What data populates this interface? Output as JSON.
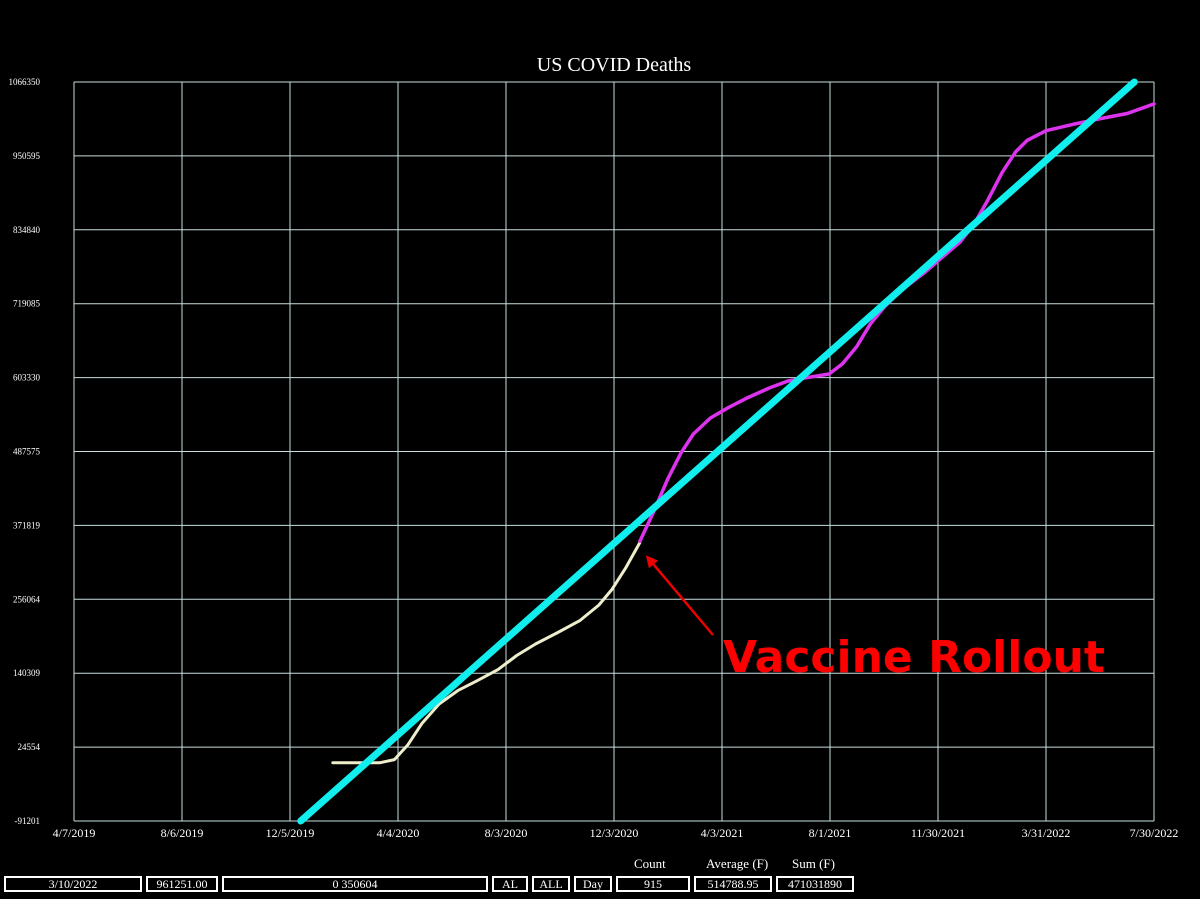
{
  "chart_data": {
    "type": "line",
    "title": "US COVID Deaths",
    "xlabel": "",
    "ylabel": "",
    "x_axis_type": "date",
    "xlim": [
      "2019-04-07",
      "2022-07-30"
    ],
    "ylim": [
      -91201,
      1066350
    ],
    "x_tick_labels": [
      "4/7/2019",
      "8/6/2019",
      "12/5/2019",
      "4/4/2020",
      "8/3/2020",
      "12/3/2020",
      "4/3/2021",
      "8/1/2021",
      "11/30/2021",
      "3/31/2022",
      "7/30/2022"
    ],
    "y_tick_labels": [
      "1066350",
      "950595",
      "834840",
      "719085",
      "603330",
      "487575",
      "371819",
      "256064",
      "140309",
      "24554",
      "-91201"
    ],
    "grid": true,
    "legend": "none",
    "series": [
      {
        "color": "#eeeecc",
        "points": [
          [
            "2020-01-22",
            0
          ],
          [
            "2020-02-20",
            0
          ],
          [
            "2020-03-15",
            80
          ],
          [
            "2020-03-31",
            5000
          ],
          [
            "2020-04-15",
            28000
          ],
          [
            "2020-05-01",
            62000
          ],
          [
            "2020-05-20",
            92000
          ],
          [
            "2020-06-10",
            113000
          ],
          [
            "2020-07-01",
            128000
          ],
          [
            "2020-07-25",
            146000
          ],
          [
            "2020-08-15",
            168000
          ],
          [
            "2020-09-05",
            186000
          ],
          [
            "2020-09-30",
            204000
          ],
          [
            "2020-10-25",
            223000
          ],
          [
            "2020-11-15",
            247000
          ],
          [
            "2020-11-30",
            272000
          ],
          [
            "2020-12-15",
            305000
          ],
          [
            "2020-12-31",
            345000
          ]
        ]
      },
      {
        "color": "#dd33ee",
        "points": [
          [
            "2020-12-31",
            347000
          ],
          [
            "2021-01-15",
            392000
          ],
          [
            "2021-01-31",
            444000
          ],
          [
            "2021-02-15",
            485000
          ],
          [
            "2021-03-01",
            515000
          ],
          [
            "2021-03-20",
            540000
          ],
          [
            "2021-04-10",
            557000
          ],
          [
            "2021-05-01",
            572000
          ],
          [
            "2021-05-25",
            587000
          ],
          [
            "2021-06-15",
            598000
          ],
          [
            "2021-07-05",
            603000
          ],
          [
            "2021-07-31",
            609000
          ],
          [
            "2021-08-15",
            625000
          ],
          [
            "2021-08-31",
            652000
          ],
          [
            "2021-09-15",
            687000
          ],
          [
            "2021-10-01",
            714000
          ],
          [
            "2021-10-20",
            740000
          ],
          [
            "2021-11-15",
            768000
          ],
          [
            "2021-12-05",
            792000
          ],
          [
            "2021-12-25",
            816000
          ],
          [
            "2022-01-10",
            845000
          ],
          [
            "2022-01-25",
            882000
          ],
          [
            "2022-02-10",
            925000
          ],
          [
            "2022-02-25",
            957000
          ],
          [
            "2022-03-10",
            975000
          ],
          [
            "2022-03-31",
            990000
          ],
          [
            "2022-04-30",
            1000000
          ],
          [
            "2022-05-31",
            1009000
          ],
          [
            "2022-06-30",
            1017000
          ],
          [
            "2022-07-30",
            1032000
          ]
        ]
      },
      {
        "color": "#11eeee",
        "points": [
          [
            "2019-12-17",
            -91201
          ],
          [
            "2022-07-08",
            1066350
          ]
        ]
      }
    ],
    "annotations": [
      {
        "text": "Vaccine Rollout",
        "color": "#ff0000",
        "arrow_to": [
          "2021-01-01",
          347000
        ]
      }
    ]
  },
  "status_bar": {
    "headers": {
      "count": "Count",
      "average": "Average (F)",
      "sum": "Sum (F)"
    },
    "date": "3/10/2022",
    "value": "961251.00",
    "range": "0 350604",
    "state": "AL",
    "filter": "ALL",
    "period": "Day",
    "count": "915",
    "average": "514788.95",
    "sum": "471031890"
  }
}
